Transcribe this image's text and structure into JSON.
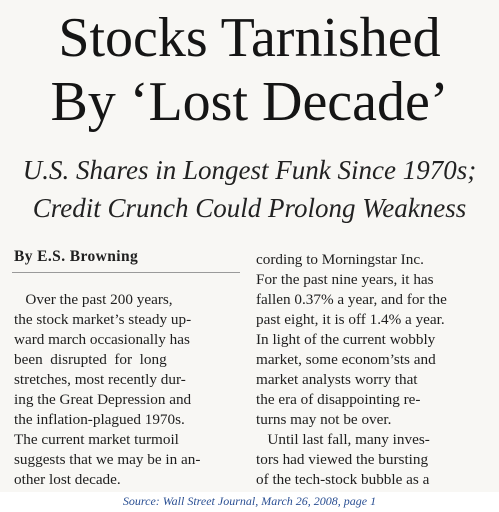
{
  "headline": {
    "line1": "Stocks Tarnished",
    "line2": "By ‘Lost Decade’"
  },
  "deck": {
    "line1": "U.S. Shares in Longest Funk Since 1970s;",
    "line2": "Credit Crunch Could Prolong Weakness"
  },
  "byline": "By E.S. Browning",
  "column1": [
    "   Over the past 200 years,",
    "the stock market’s steady up-",
    "ward march occasionally has",
    "been  disrupted  for  long",
    "stretches, most recently dur-",
    "ing the Great Depression and",
    "the inflation-plagued 1970s.",
    "The current market turmoil",
    "suggests that we may be in an-",
    "other lost decade."
  ],
  "column2": [
    "cording to Morningstar Inc.",
    "For the past nine years, it has",
    "fallen 0.37% a year, and for the",
    "past eight, it is off 1.4% a year.",
    "In light of the current wobbly",
    "market, some econom’sts and",
    "market analysts worry that",
    "the era of disappointing re-",
    "turns may not be over.",
    "   Until last fall, many inves-",
    "tors had viewed the bursting",
    "of the tech-stock bubble as a"
  ],
  "source": "Source: Wall Street Journal, March 26, 2008, page 1"
}
